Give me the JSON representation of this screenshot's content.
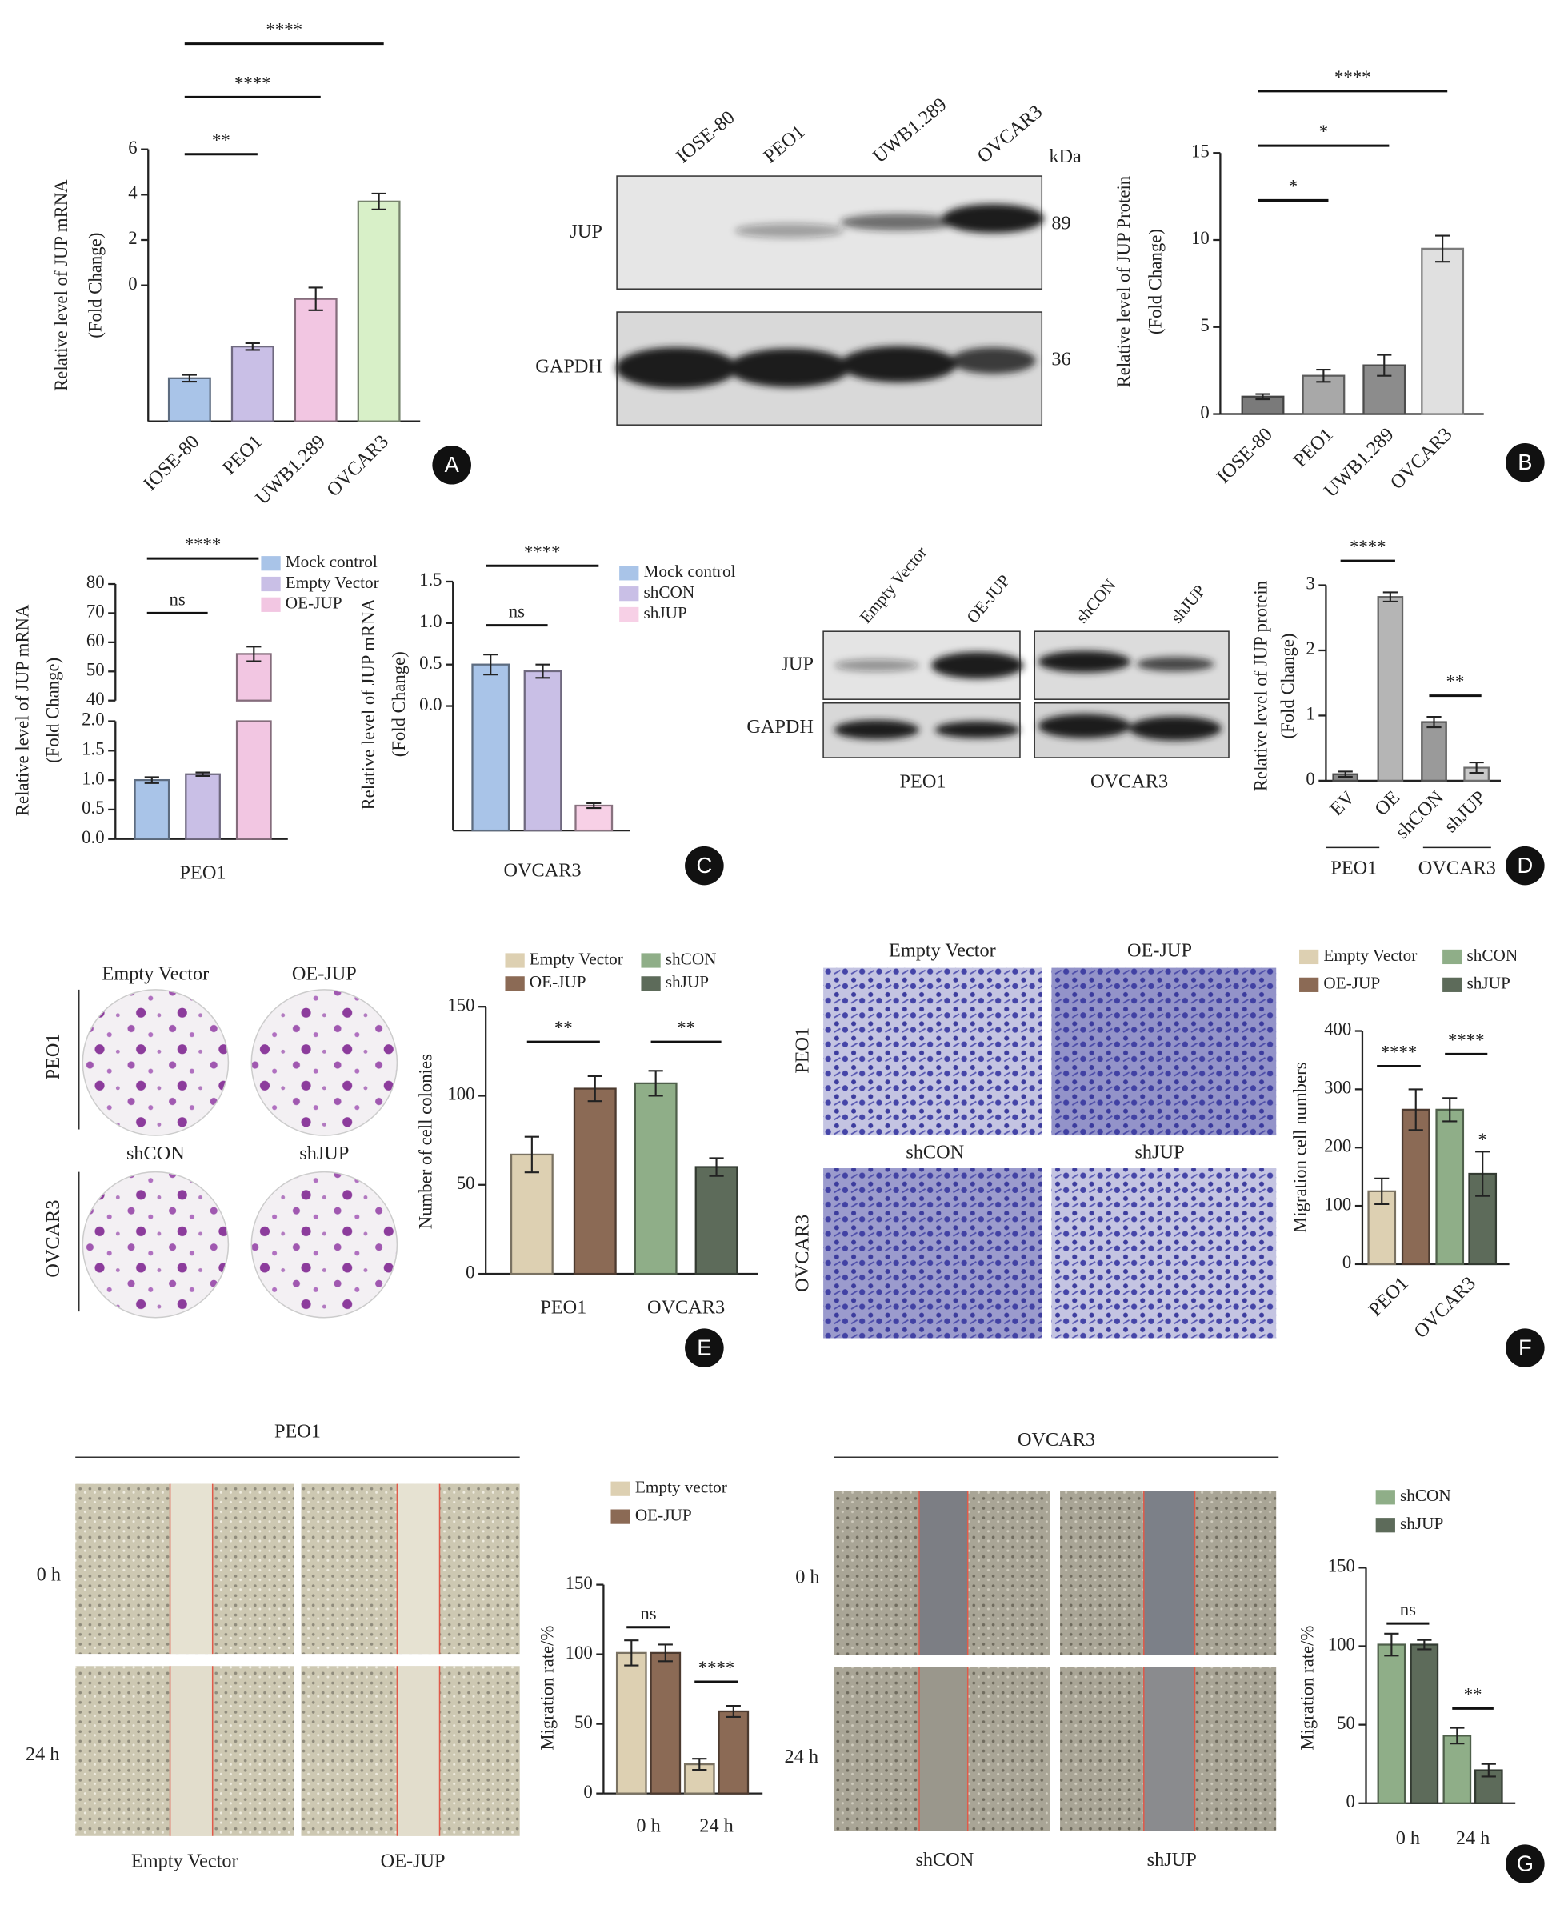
{
  "chart_data": [
    {
      "type": "bar",
      "ylabel": [
        "Relative level of JUP mRNA",
        "(Fold Change)"
      ],
      "categories": [
        "IOSE-80",
        "PEO1",
        "UWB1.289",
        "OVCAR3"
      ],
      "values": [
        -4.1,
        -2.7,
        -0.6,
        3.7
      ],
      "errors": [
        0.15,
        0.15,
        0.5,
        0.35
      ],
      "colors": [
        "#a9c4e8",
        "#c9bfe6",
        "#f2c6e2",
        "#d8f0c8"
      ],
      "ylim": [
        -6,
        6
      ],
      "yticks": [
        0,
        2,
        4,
        6
      ],
      "annotations": [
        {
          "text": "**",
          "between": [
            "IOSE-80",
            "PEO1"
          ]
        },
        {
          "text": "****",
          "between": [
            "IOSE-80",
            "UWB1.289"
          ]
        },
        {
          "text": "****",
          "between": [
            "IOSE-80",
            "OVCAR3"
          ]
        }
      ]
    },
    {
      "type": "bar",
      "ylabel": [
        "Relative level of JUP Protein",
        "(Fold Change)"
      ],
      "categories": [
        "IOSE-80",
        "PEO1",
        "UWB1.289",
        "OVCAR3"
      ],
      "values": [
        1.0,
        2.2,
        2.8,
        9.5
      ],
      "errors": [
        0.15,
        0.35,
        0.6,
        0.75
      ],
      "colors": [
        "#7a7a7a",
        "#a8a8a8",
        "#8c8c8c",
        "#e0e0e0"
      ],
      "ylim": [
        0,
        15
      ],
      "yticks": [
        0,
        5,
        10,
        15
      ],
      "annotations": [
        {
          "text": "*",
          "between": [
            "IOSE-80",
            "PEO1"
          ]
        },
        {
          "text": "*",
          "between": [
            "IOSE-80",
            "UWB1.289"
          ]
        },
        {
          "text": "****",
          "between": [
            "IOSE-80",
            "OVCAR3"
          ]
        }
      ]
    },
    {
      "type": "grouped_bar",
      "ylabel": [
        "Relative level of JUP mRNA",
        "(Fold Change)"
      ],
      "categories": [
        "PEO1"
      ],
      "series": [
        {
          "name": "Mock control",
          "color": "#a9c4e8",
          "values": [
            1.0
          ],
          "errors": [
            0.05
          ]
        },
        {
          "name": "Empty Vector",
          "color": "#c9bfe6",
          "values": [
            1.1
          ],
          "errors": [
            0.03
          ]
        },
        {
          "name": "OE-JUP",
          "color": "#f2c6e2",
          "values": [
            56
          ],
          "errors": [
            2.5
          ]
        }
      ],
      "ylim": [
        0,
        80
      ],
      "ybreak": [
        2,
        40
      ],
      "yticks": [
        {
          "value": 0,
          "label": "0.0"
        },
        {
          "value": 0.5,
          "label": "0.5"
        },
        {
          "value": 1,
          "label": "1.0"
        },
        {
          "value": 1.5,
          "label": "1.5"
        },
        {
          "value": 2,
          "label": "2.0"
        },
        40,
        50,
        60,
        70,
        80
      ],
      "annotations": [
        {
          "text": "ns",
          "category": "PEO1",
          "between": [
            "Mock control",
            "Empty Vector"
          ]
        },
        {
          "text": "****",
          "category": "PEO1",
          "between": [
            "Mock control",
            "OE-JUP"
          ]
        }
      ]
    },
    {
      "type": "grouped_bar",
      "ylabel": [
        "Relative level of JUP mRNA",
        "(Fold Change)"
      ],
      "categories": [
        "OVCAR3"
      ],
      "series": [
        {
          "name": "Mock control",
          "color": "#a9c4e8",
          "values": [
            0.5
          ],
          "errors": [
            0.12
          ]
        },
        {
          "name": "shCON",
          "color": "#c9bfe6",
          "values": [
            0.42
          ],
          "errors": [
            0.08
          ]
        },
        {
          "name": "shJUP",
          "color": "#f7d0e6",
          "values": [
            -1.2
          ],
          "errors": [
            0.03
          ]
        }
      ],
      "ylim": [
        -1.5,
        1.5
      ],
      "yticks": [
        {
          "value": 0,
          "label": "0.0"
        },
        {
          "value": 0.5,
          "label": "0.5"
        },
        {
          "value": 1,
          "label": "1.0"
        },
        {
          "value": 1.5,
          "label": "1.5"
        }
      ],
      "annotations": [
        {
          "text": "ns",
          "category": "OVCAR3",
          "between": [
            "Mock control",
            "shCON"
          ]
        },
        {
          "text": "****",
          "category": "OVCAR3",
          "between": [
            "Mock control",
            "shJUP"
          ]
        }
      ]
    },
    {
      "type": "bar",
      "ylabel": [
        "Relative level of JUP protein",
        "(Fold Change)"
      ],
      "categories": [
        "EV",
        "OE",
        "shCON",
        "shJUP"
      ],
      "groups": [
        "PEO1",
        "OVCAR3"
      ],
      "values": [
        0.1,
        2.82,
        0.9,
        0.2
      ],
      "errors": [
        0.04,
        0.07,
        0.08,
        0.08
      ],
      "colors": [
        "#8a8a8a",
        "#b5b5b5",
        "#9a9a9a",
        "#c8c8c8"
      ],
      "ylim": [
        0,
        3
      ],
      "yticks": [
        0,
        1,
        2,
        3
      ],
      "annotations": [
        {
          "text": "****",
          "between": [
            "EV",
            "OE"
          ]
        },
        {
          "text": "**",
          "between": [
            "shCON",
            "shJUP"
          ]
        }
      ]
    },
    {
      "type": "grouped_bar",
      "ylabel": [
        "Number of cell colonies"
      ],
      "categories": [
        "PEO1",
        "OVCAR3"
      ],
      "series": [
        {
          "name": "Empty Vector",
          "color": "#ddd0b2",
          "values": [
            67,
            null
          ],
          "errors": [
            10,
            null
          ]
        },
        {
          "name": "OE-JUP",
          "color": "#8b6a55",
          "values": [
            104,
            null
          ],
          "errors": [
            7,
            null
          ]
        },
        {
          "name": "shCON",
          "color": "#8fae88",
          "values": [
            null,
            107
          ],
          "errors": [
            null,
            7
          ]
        },
        {
          "name": "shJUP",
          "color": "#5d6b5a",
          "values": [
            null,
            60
          ],
          "errors": [
            null,
            5
          ]
        }
      ],
      "ylim": [
        0,
        150
      ],
      "yticks": [
        0,
        50,
        100,
        150
      ],
      "annotations": [
        {
          "text": "**",
          "category": "PEO1",
          "between": [
            "Empty Vector",
            "OE-JUP"
          ]
        },
        {
          "text": "**",
          "category": "OVCAR3",
          "between": [
            "shCON",
            "shJUP"
          ]
        }
      ]
    },
    {
      "type": "grouped_bar",
      "ylabel": [
        "Migration cell numbers"
      ],
      "categories": [
        "PEO1",
        "OVCAR3"
      ],
      "series": [
        {
          "name": "Empty Vector",
          "color": "#ddd0b2",
          "values": [
            125,
            null
          ],
          "errors": [
            22,
            null
          ]
        },
        {
          "name": "OE-JUP",
          "color": "#8b6a55",
          "values": [
            265,
            null
          ],
          "errors": [
            35,
            null
          ]
        },
        {
          "name": "shCON",
          "color": "#8fae88",
          "values": [
            null,
            265
          ],
          "errors": [
            null,
            20
          ]
        },
        {
          "name": "shJUP",
          "color": "#5d6b5a",
          "values": [
            null,
            155
          ],
          "errors": [
            null,
            38
          ]
        }
      ],
      "ylim": [
        0,
        400
      ],
      "yticks": [
        0,
        100,
        200,
        300,
        400
      ],
      "annotations": [
        {
          "text": "****",
          "category": "PEO1",
          "between": [
            "Empty Vector",
            "OE-JUP"
          ]
        },
        {
          "text": "****",
          "category": "OVCAR3",
          "between": [
            "shCON",
            "shJUP"
          ]
        },
        {
          "text": "*",
          "category": "OVCAR3",
          "between": [
            "shJUP"
          ]
        }
      ]
    },
    {
      "type": "grouped_bar",
      "ylabel": [
        "Migration rate/%"
      ],
      "categories": [
        "0 h",
        "24 h"
      ],
      "series": [
        {
          "name": "Empty vector",
          "color": "#ddd0b2",
          "values": [
            101,
            21
          ],
          "errors": [
            9,
            4
          ]
        },
        {
          "name": "OE-JUP",
          "color": "#8b6a55",
          "values": [
            101,
            59
          ],
          "errors": [
            6,
            4
          ]
        }
      ],
      "ylim": [
        0,
        150
      ],
      "yticks": [
        0,
        50,
        100,
        150
      ],
      "annotations": [
        {
          "text": "ns",
          "category": "0 h",
          "between": [
            "Empty vector",
            "OE-JUP"
          ]
        },
        {
          "text": "****",
          "category": "24 h",
          "between": [
            "Empty vector",
            "OE-JUP"
          ]
        }
      ]
    },
    {
      "type": "grouped_bar",
      "ylabel": [
        "Migration rate/%"
      ],
      "categories": [
        "0 h",
        "24 h"
      ],
      "series": [
        {
          "name": "shCON",
          "color": "#8fae88",
          "values": [
            101,
            43
          ],
          "errors": [
            7,
            5
          ]
        },
        {
          "name": "shJUP",
          "color": "#5d6b5a",
          "values": [
            101,
            21
          ],
          "errors": [
            3,
            4
          ]
        }
      ],
      "ylim": [
        0,
        150
      ],
      "yticks": [
        0,
        50,
        100,
        150
      ],
      "annotations": [
        {
          "text": "ns",
          "category": "0 h",
          "between": [
            "shCON",
            "shJUP"
          ]
        },
        {
          "text": "**",
          "category": "24 h",
          "between": [
            "shCON",
            "shJUP"
          ]
        }
      ]
    }
  ],
  "panel_letters": [
    "A",
    "B",
    "C",
    "D",
    "E",
    "F",
    "G"
  ],
  "photo_panels": {
    "B": {
      "lanes": [
        "IOSE-80",
        "PEO1",
        "UWB1.289",
        "OVCAR3"
      ],
      "rows": [
        "JUP",
        "GAPDH"
      ],
      "unit": "kDa",
      "sizes": [
        89,
        36
      ]
    },
    "D": {
      "lanes": [
        "Empty Vector",
        "OE-JUP",
        "shCON",
        "shJUP"
      ],
      "rows": [
        "JUP",
        "GAPDH"
      ],
      "groups": [
        "PEO1",
        "OVCAR3"
      ]
    },
    "E": {
      "columns": [
        "Empty Vector",
        "OE-JUP",
        "shCON",
        "shJUP"
      ],
      "rows": [
        "PEO1",
        "OVCAR3"
      ]
    },
    "F": {
      "columns": [
        "Empty Vector",
        "OE-JUP",
        "shCON",
        "shJUP"
      ],
      "rows": [
        "PEO1",
        "OVCAR3"
      ]
    },
    "G_left": {
      "title": "PEO1",
      "rows": [
        "0 h",
        "24 h"
      ],
      "columns": [
        "Empty Vector",
        "OE-JUP"
      ]
    },
    "G_right": {
      "title": "OVCAR3",
      "rows": [
        "0 h",
        "24 h"
      ],
      "columns": [
        "shCON",
        "shJUP"
      ]
    }
  }
}
